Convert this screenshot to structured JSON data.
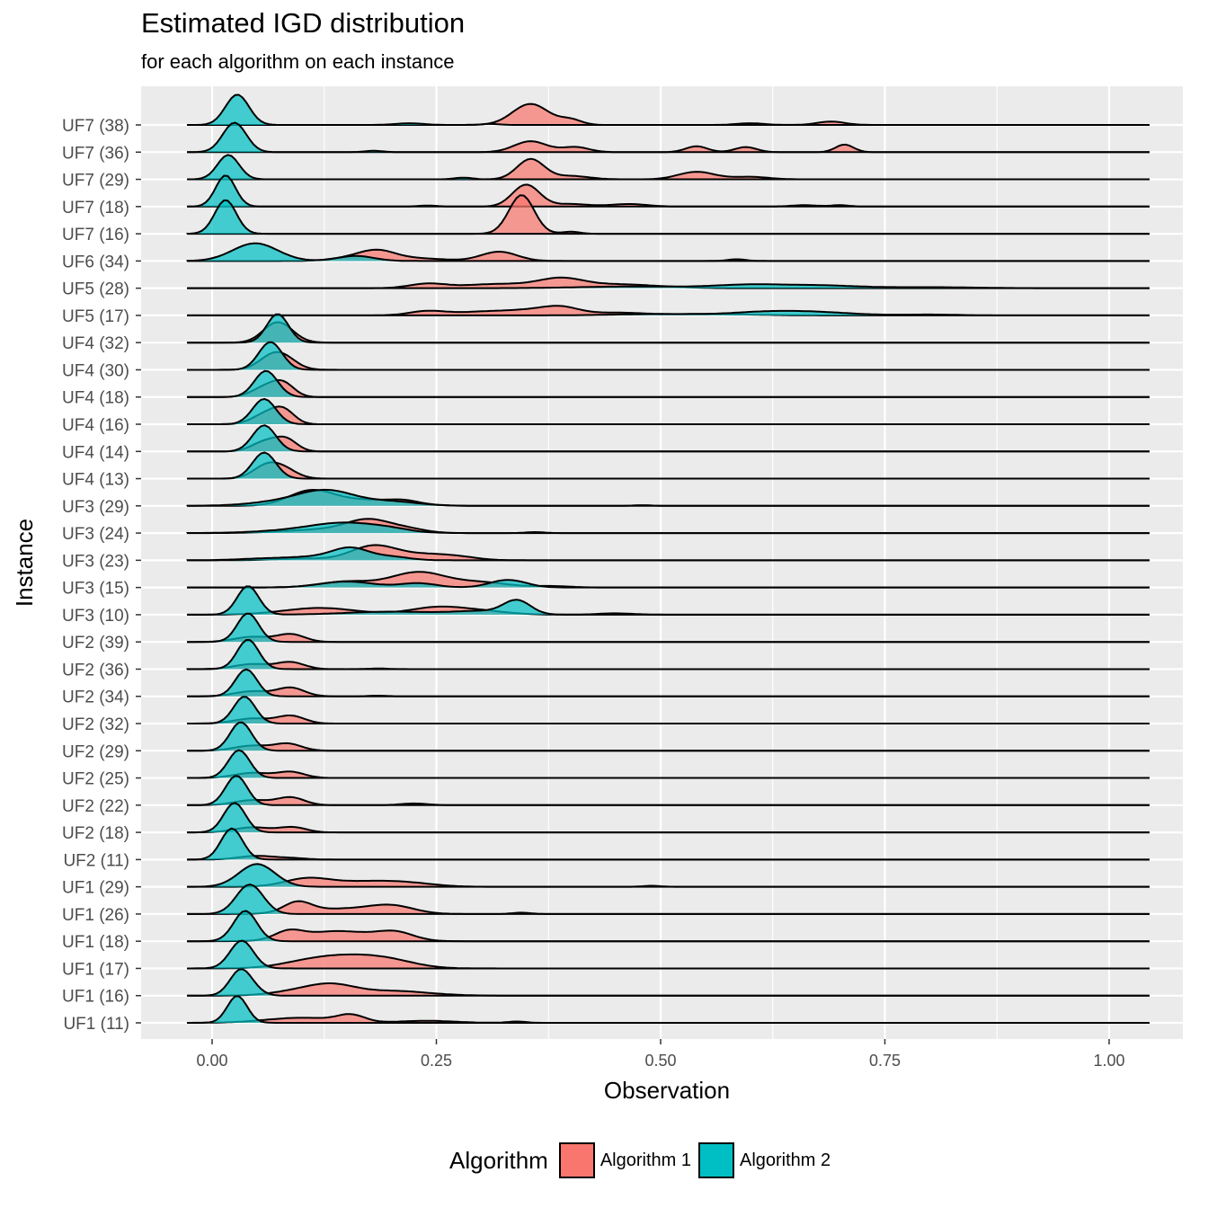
{
  "title": "Estimated IGD distribution",
  "subtitle": "for each algorithm on each instance",
  "legend": {
    "title": "Algorithm",
    "items": [
      {
        "label": "Algorithm 1",
        "color": "#F8766D"
      },
      {
        "label": "Algorithm 2",
        "color": "#00BFC4"
      }
    ]
  },
  "chart_data": {
    "type": "ridgeline density",
    "xlabel": "Observation",
    "ylabel": "Instance",
    "xlim": [
      -0.08,
      1.085
    ],
    "xticks": [
      "0.00",
      "0.25",
      "0.50",
      "0.75",
      "1.00"
    ],
    "x_range": [
      -0.028,
      1.045
    ],
    "grid": true,
    "legend_position": "bottom",
    "categories": [
      "UF1 (11)",
      "UF1 (16)",
      "UF1 (17)",
      "UF1 (18)",
      "UF1 (26)",
      "UF1 (29)",
      "UF2 (11)",
      "UF2 (18)",
      "UF2 (22)",
      "UF2 (25)",
      "UF2 (29)",
      "UF2 (32)",
      "UF2 (34)",
      "UF2 (36)",
      "UF2 (39)",
      "UF3 (10)",
      "UF3 (15)",
      "UF3 (23)",
      "UF3 (24)",
      "UF3 (29)",
      "UF4 (13)",
      "UF4 (14)",
      "UF4 (16)",
      "UF4 (18)",
      "UF4 (30)",
      "UF4 (32)",
      "UF5 (17)",
      "UF5 (28)",
      "UF6 (34)",
      "UF7 (16)",
      "UF7 (18)",
      "UF7 (29)",
      "UF7 (36)",
      "UF7 (38)"
    ],
    "series": [
      {
        "name": "Algorithm 1",
        "color": "#F8766D",
        "ridges": [
          [
            [
              0.1,
              0.3,
              0.04
            ],
            [
              0.155,
              0.4,
              0.015
            ],
            [
              0.24,
              0.12,
              0.03
            ],
            [
              0.34,
              0.08,
              0.01
            ]
          ],
          [
            [
              0.1,
              0.3,
              0.03
            ],
            [
              0.135,
              0.5,
              0.025
            ],
            [
              0.2,
              0.28,
              0.04
            ]
          ],
          [
            [
              0.1,
              0.2,
              0.03
            ],
            [
              0.15,
              0.7,
              0.04
            ],
            [
              0.2,
              0.3,
              0.03
            ]
          ],
          [
            [
              0.085,
              0.45,
              0.015
            ],
            [
              0.14,
              0.6,
              0.04
            ],
            [
              0.205,
              0.45,
              0.02
            ]
          ],
          [
            [
              0.095,
              0.6,
              0.015
            ],
            [
              0.14,
              0.3,
              0.04
            ],
            [
              0.2,
              0.45,
              0.025
            ],
            [
              0.345,
              0.08,
              0.01
            ]
          ],
          [
            [
              0.105,
              0.45,
              0.025
            ],
            [
              0.17,
              0.3,
              0.04
            ],
            [
              0.22,
              0.15,
              0.03
            ],
            [
              0.49,
              0.06,
              0.01
            ]
          ],
          [
            [
              0.05,
              0.22,
              0.02
            ],
            [
              0.09,
              0.08,
              0.015
            ]
          ],
          [
            [
              0.045,
              0.3,
              0.02
            ],
            [
              0.09,
              0.3,
              0.015
            ]
          ],
          [
            [
              0.045,
              0.3,
              0.02
            ],
            [
              0.088,
              0.45,
              0.015
            ],
            [
              0.225,
              0.1,
              0.015
            ]
          ],
          [
            [
              0.045,
              0.3,
              0.02
            ],
            [
              0.088,
              0.35,
              0.015
            ]
          ],
          [
            [
              0.045,
              0.3,
              0.02
            ],
            [
              0.085,
              0.4,
              0.015
            ]
          ],
          [
            [
              0.045,
              0.3,
              0.02
            ],
            [
              0.088,
              0.45,
              0.015
            ]
          ],
          [
            [
              0.045,
              0.3,
              0.02
            ],
            [
              0.088,
              0.5,
              0.015
            ],
            [
              0.185,
              0.04,
              0.01
            ]
          ],
          [
            [
              0.045,
              0.3,
              0.02
            ],
            [
              0.088,
              0.4,
              0.015
            ],
            [
              0.185,
              0.04,
              0.01
            ]
          ],
          [
            [
              0.045,
              0.3,
              0.02
            ],
            [
              0.088,
              0.45,
              0.015
            ]
          ],
          [
            [
              0.12,
              0.4,
              0.04
            ],
            [
              0.25,
              0.42,
              0.03
            ],
            [
              0.3,
              0.2,
              0.03
            ],
            [
              0.45,
              0.08,
              0.02
            ]
          ],
          [
            [
              0.15,
              0.35,
              0.03
            ],
            [
              0.23,
              0.9,
              0.03
            ],
            [
              0.3,
              0.3,
              0.03
            ],
            [
              0.38,
              0.08,
              0.02
            ]
          ],
          [
            [
              0.1,
              0.1,
              0.03
            ],
            [
              0.18,
              0.85,
              0.025
            ],
            [
              0.24,
              0.35,
              0.03
            ],
            [
              0.28,
              0.1,
              0.02
            ]
          ],
          [
            [
              0.12,
              0.2,
              0.04
            ],
            [
              0.175,
              0.75,
              0.025
            ],
            [
              0.22,
              0.2,
              0.02
            ],
            [
              0.36,
              0.06,
              0.01
            ]
          ],
          [
            [
              0.11,
              0.85,
              0.025
            ],
            [
              0.175,
              0.35,
              0.04
            ],
            [
              0.215,
              0.15,
              0.015
            ],
            [
              0.48,
              0.04,
              0.01
            ]
          ],
          [
            [
              0.06,
              0.7,
              0.015
            ],
            [
              0.08,
              0.5,
              0.015
            ]
          ],
          [
            [
              0.06,
              0.6,
              0.015
            ],
            [
              0.083,
              0.65,
              0.012
            ]
          ],
          [
            [
              0.06,
              0.6,
              0.015
            ],
            [
              0.08,
              0.75,
              0.012
            ]
          ],
          [
            [
              0.06,
              0.6,
              0.015
            ],
            [
              0.08,
              0.7,
              0.012
            ]
          ],
          [
            [
              0.065,
              0.6,
              0.015
            ],
            [
              0.08,
              0.6,
              0.015
            ]
          ],
          [
            [
              0.07,
              0.9,
              0.015
            ],
            [
              0.082,
              0.4,
              0.015
            ]
          ],
          [
            [
              0.24,
              0.25,
              0.02
            ],
            [
              0.3,
              0.2,
              0.03
            ],
            [
              0.36,
              0.3,
              0.03
            ],
            [
              0.39,
              0.35,
              0.02
            ],
            [
              0.45,
              0.15,
              0.03
            ],
            [
              0.55,
              0.08,
              0.05
            ]
          ],
          [
            [
              0.24,
              0.25,
              0.02
            ],
            [
              0.32,
              0.25,
              0.04
            ],
            [
              0.39,
              0.55,
              0.025
            ],
            [
              0.45,
              0.2,
              0.03
            ],
            [
              0.5,
              0.08,
              0.03
            ]
          ],
          [
            [
              0.16,
              0.2,
              0.025
            ],
            [
              0.185,
              0.5,
              0.02
            ],
            [
              0.23,
              0.15,
              0.03
            ],
            [
              0.32,
              0.55,
              0.02
            ],
            [
              0.585,
              0.1,
              0.01
            ]
          ],
          [
            [
              0.345,
              2.3,
              0.014
            ],
            [
              0.4,
              0.12,
              0.01
            ]
          ],
          [
            [
              0.35,
              1.3,
              0.015
            ],
            [
              0.4,
              0.15,
              0.02
            ],
            [
              0.465,
              0.15,
              0.02
            ],
            [
              0.66,
              0.08,
              0.015
            ],
            [
              0.7,
              0.08,
              0.01
            ]
          ],
          [
            [
              0.355,
              1.2,
              0.015
            ],
            [
              0.4,
              0.2,
              0.02
            ],
            [
              0.54,
              0.45,
              0.02
            ],
            [
              0.6,
              0.15,
              0.02
            ]
          ],
          [
            [
              0.355,
              0.65,
              0.018
            ],
            [
              0.405,
              0.3,
              0.015
            ],
            [
              0.54,
              0.35,
              0.012
            ],
            [
              0.595,
              0.3,
              0.012
            ],
            [
              0.705,
              0.45,
              0.01
            ]
          ],
          [
            [
              0.355,
              1.25,
              0.02
            ],
            [
              0.4,
              0.3,
              0.012
            ],
            [
              0.6,
              0.1,
              0.015
            ],
            [
              0.69,
              0.2,
              0.015
            ]
          ]
        ]
      },
      {
        "name": "Algorithm 2",
        "color": "#00BFC4",
        "ridges": [
          [
            [
              0.028,
              1.6,
              0.011
            ]
          ],
          [
            [
              0.032,
              1.55,
              0.012
            ],
            [
              0.05,
              0.15,
              0.01
            ]
          ],
          [
            [
              0.033,
              1.65,
              0.013
            ]
          ],
          [
            [
              0.037,
              1.8,
              0.013
            ]
          ],
          [
            [
              0.042,
              1.75,
              0.015
            ]
          ],
          [
            [
              0.05,
              1.35,
              0.02
            ]
          ],
          [
            [
              0.022,
              1.85,
              0.012
            ]
          ],
          [
            [
              0.025,
              1.75,
              0.012
            ]
          ],
          [
            [
              0.027,
              1.75,
              0.012
            ]
          ],
          [
            [
              0.03,
              1.65,
              0.012
            ]
          ],
          [
            [
              0.032,
              1.7,
              0.012
            ]
          ],
          [
            [
              0.036,
              1.6,
              0.012
            ]
          ],
          [
            [
              0.038,
              1.6,
              0.012
            ]
          ],
          [
            [
              0.04,
              1.75,
              0.012
            ]
          ],
          [
            [
              0.04,
              1.7,
              0.012
            ]
          ],
          [
            [
              0.04,
              1.7,
              0.012
            ],
            [
              0.2,
              0.18,
              0.05
            ],
            [
              0.3,
              0.2,
              0.03
            ],
            [
              0.34,
              0.8,
              0.015
            ]
          ],
          [
            [
              0.15,
              0.35,
              0.03
            ],
            [
              0.23,
              0.25,
              0.02
            ],
            [
              0.33,
              0.45,
              0.02
            ]
          ],
          [
            [
              0.06,
              0.1,
              0.03
            ],
            [
              0.12,
              0.2,
              0.03
            ],
            [
              0.155,
              0.65,
              0.02
            ],
            [
              0.2,
              0.2,
              0.02
            ]
          ],
          [
            [
              0.08,
              0.1,
              0.04
            ],
            [
              0.15,
              0.6,
              0.04
            ],
            [
              0.2,
              0.1,
              0.02
            ]
          ],
          [
            [
              0.09,
              0.3,
              0.04
            ],
            [
              0.13,
              0.75,
              0.03
            ],
            [
              0.2,
              0.25,
              0.03
            ]
          ],
          [
            [
              0.058,
              1.55,
              0.013
            ]
          ],
          [
            [
              0.058,
              1.55,
              0.013
            ]
          ],
          [
            [
              0.058,
              1.5,
              0.013
            ]
          ],
          [
            [
              0.06,
              1.55,
              0.013
            ]
          ],
          [
            [
              0.065,
              1.65,
              0.013
            ]
          ],
          [
            [
              0.073,
              1.7,
              0.012
            ]
          ],
          [
            [
              0.5,
              0.08,
              0.05
            ],
            [
              0.62,
              0.2,
              0.04
            ],
            [
              0.68,
              0.15,
              0.04
            ],
            [
              0.8,
              0.05,
              0.03
            ]
          ],
          [
            [
              0.47,
              0.1,
              0.06
            ],
            [
              0.6,
              0.2,
              0.04
            ],
            [
              0.68,
              0.15,
              0.04
            ],
            [
              0.8,
              0.06,
              0.05
            ]
          ],
          [
            [
              0.048,
              1.05,
              0.025
            ],
            [
              0.16,
              0.3,
              0.02
            ]
          ],
          [
            [
              0.015,
              2.0,
              0.012
            ]
          ],
          [
            [
              0.015,
              1.85,
              0.011
            ],
            [
              0.24,
              0.06,
              0.01
            ]
          ],
          [
            [
              0.018,
              1.45,
              0.012
            ],
            [
              0.28,
              0.1,
              0.01
            ]
          ],
          [
            [
              0.025,
              1.75,
              0.013
            ],
            [
              0.18,
              0.08,
              0.01
            ]
          ],
          [
            [
              0.028,
              1.8,
              0.013
            ],
            [
              0.22,
              0.1,
              0.015
            ],
            [
              0.31,
              0.06,
              0.01
            ]
          ]
        ]
      }
    ]
  }
}
